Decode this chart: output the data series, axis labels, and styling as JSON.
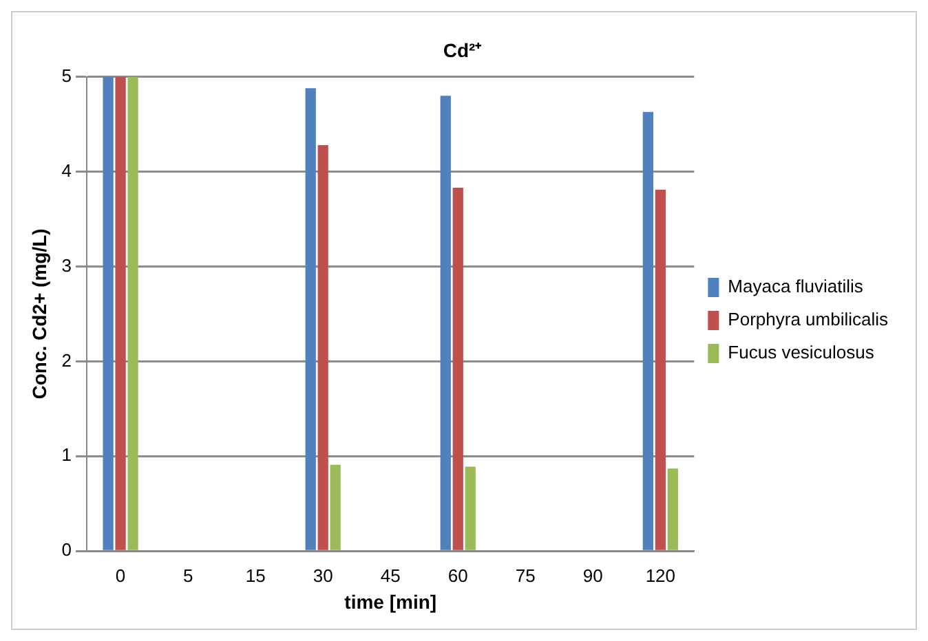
{
  "chart_data": {
    "type": "bar",
    "title": "Cd²⁺",
    "xlabel": "time [min]",
    "ylabel": "Conc. Cd2+ (mg/L)",
    "categories": [
      "0",
      "5",
      "15",
      "30",
      "45",
      "60",
      "75",
      "90",
      "120"
    ],
    "series": [
      {
        "name": "Mayaca fluviatilis",
        "color": "#4f81bd",
        "values": [
          5,
          null,
          null,
          4.88,
          null,
          4.8,
          null,
          null,
          4.63
        ]
      },
      {
        "name": "Porphyra umbilicalis",
        "color": "#c0504d",
        "values": [
          5,
          null,
          null,
          4.28,
          null,
          3.83,
          null,
          null,
          3.81
        ]
      },
      {
        "name": "Fucus vesiculosus",
        "color": "#9bbb59",
        "values": [
          5,
          null,
          null,
          0.91,
          null,
          0.89,
          null,
          null,
          0.87
        ]
      }
    ],
    "ylim": [
      0,
      5
    ],
    "yticks": [
      0,
      1,
      2,
      3,
      4,
      5
    ],
    "grid": "y",
    "legend": "right"
  }
}
